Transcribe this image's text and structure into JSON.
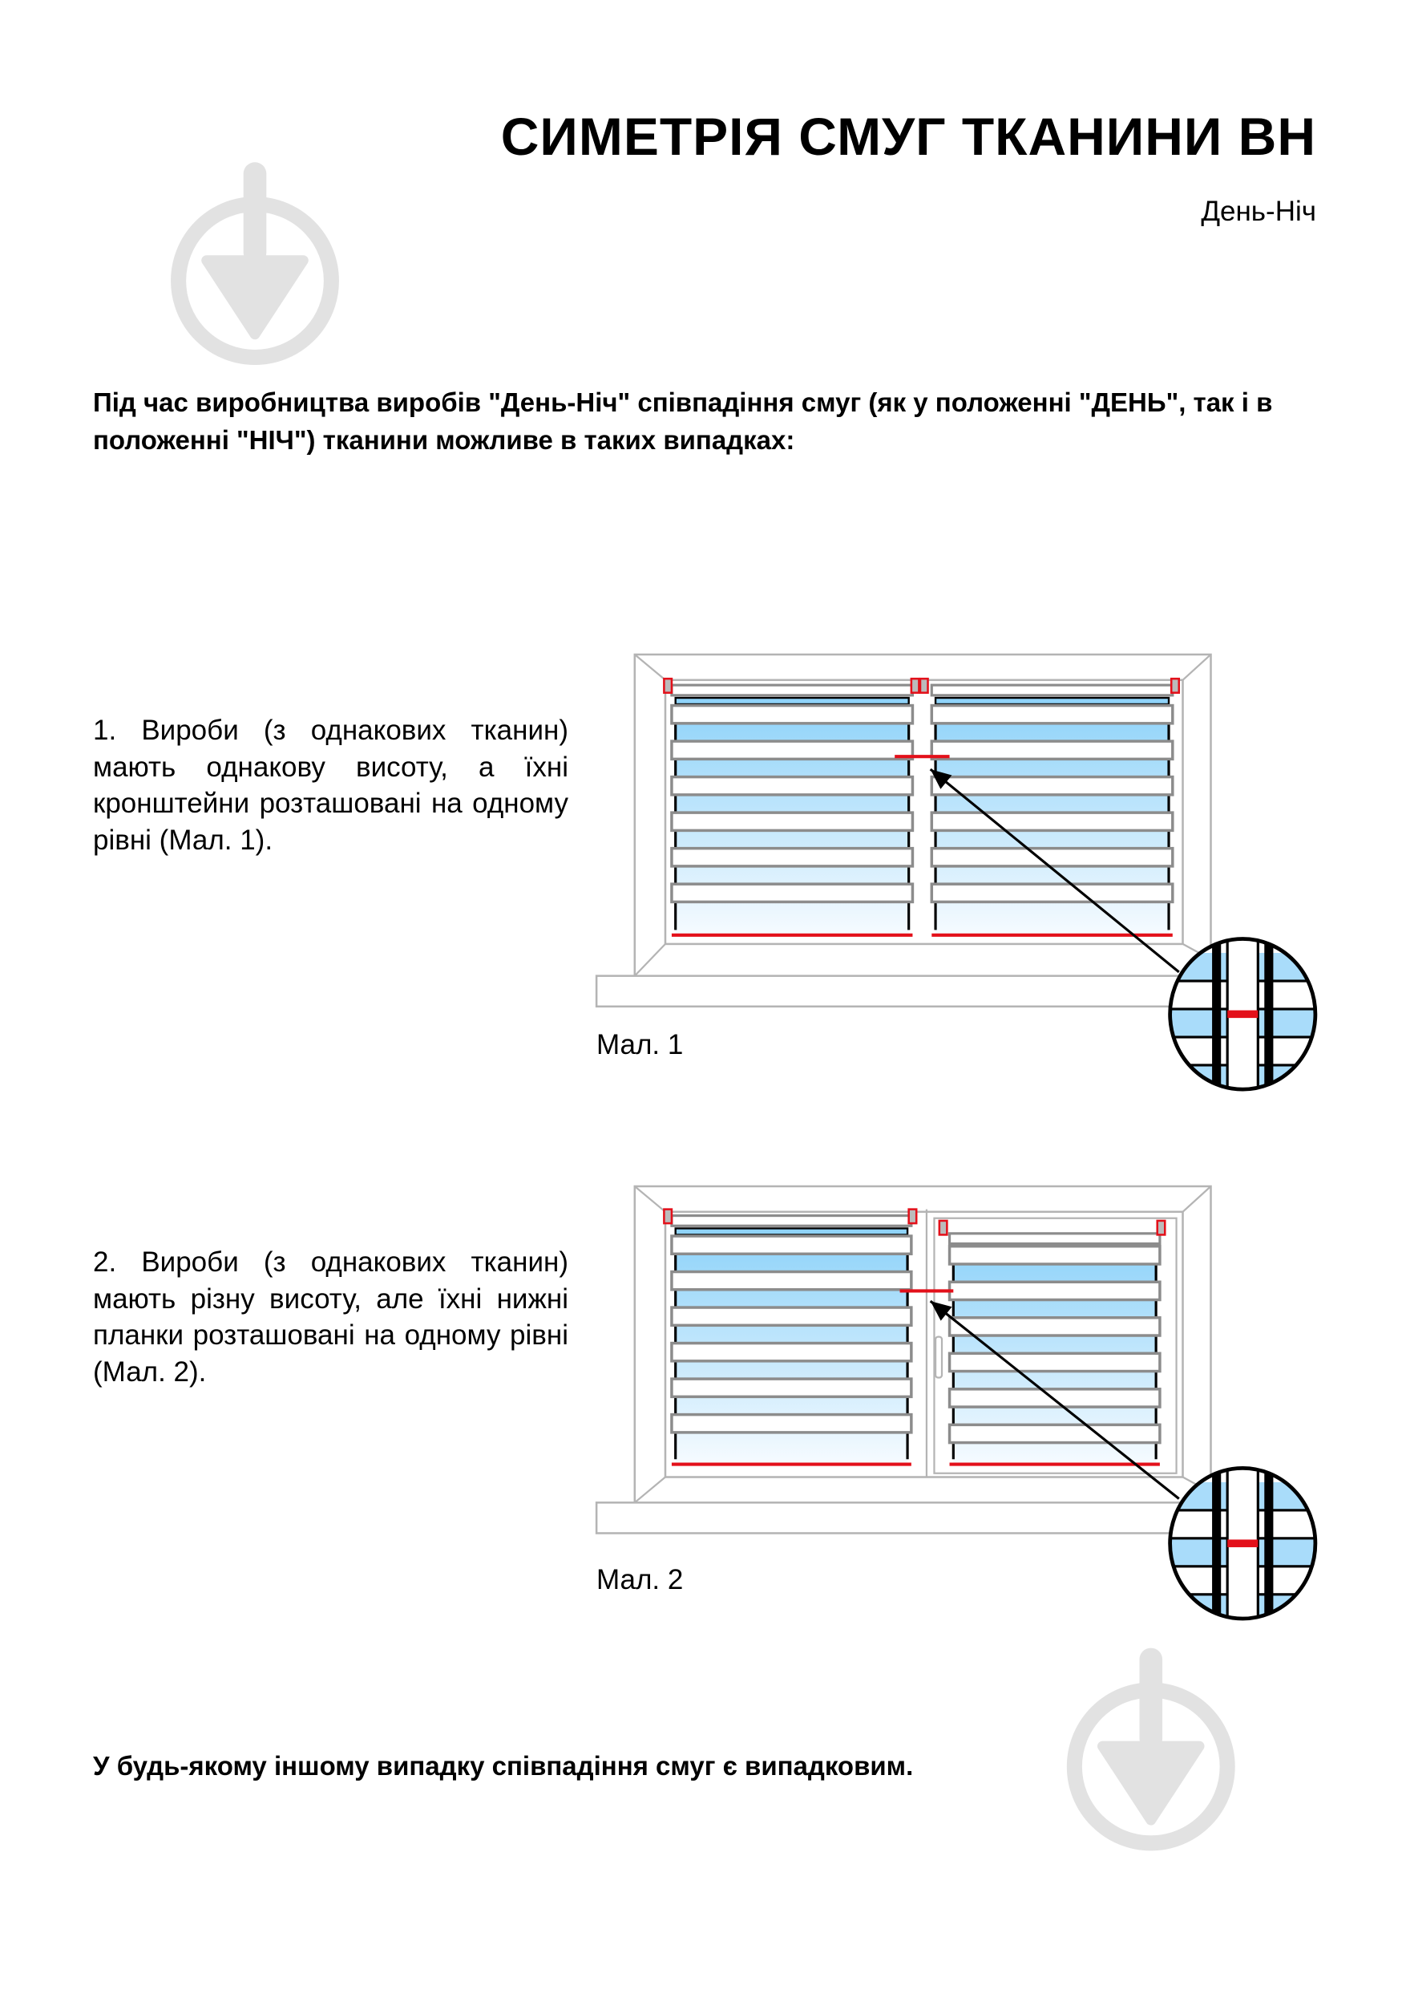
{
  "header": {
    "title": "СИМЕТРІЯ СМУГ ТКАНИНИ ВН",
    "subtitle": "День-Ніч"
  },
  "intro": "Під час виробництва виробів \"День-Ніч\" співпадіння смуг (як у положенні \"ДЕНЬ\", так і в положенні \"НІЧ\") тканини можливе в таких випадках:",
  "cases": [
    {
      "text": "1. Вироби (з однакових тканин) мають однакову висоту, а їхні кронштейни розташовані на одному рівні (Мал. 1).",
      "caption": "Мал. 1"
    },
    {
      "text": "2. Вироби (з однакових тканин) мають різну висоту, але їхні нижні планки розташовані на одному рівні (Мал. 2).",
      "caption": "Мал. 2"
    }
  ],
  "outro": "У будь-якому іншому випадку співпадіння смуг є випадковим.",
  "colors": {
    "accent": "#e3101a",
    "fabric_blue": "#8fd3f9",
    "frame_gray": "#8c8c8c",
    "watermark": "#e2e2e2"
  },
  "icons": [
    "watermark-logo-icon",
    "magnifier-detail-icon",
    "arrow-icon"
  ]
}
